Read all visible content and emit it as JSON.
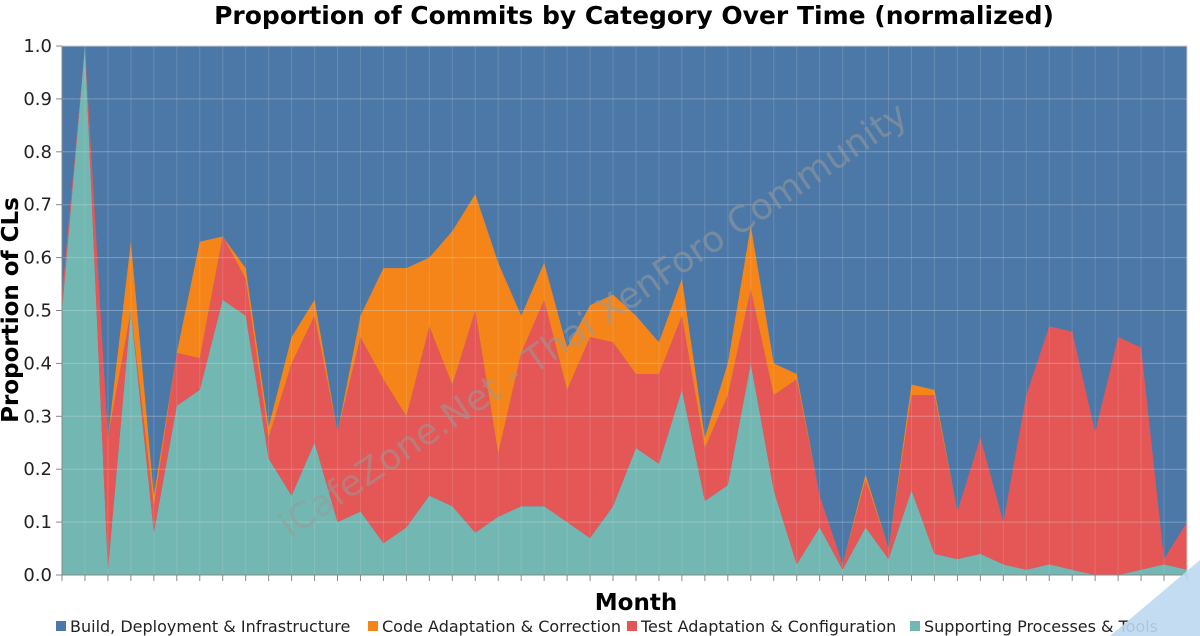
{
  "chart_data": {
    "type": "area",
    "stacked": true,
    "normalized": true,
    "title": "Proportion of Commits by Category Over Time (normalized)",
    "xlabel": "Month",
    "ylabel": "Proportion of CLs",
    "ylim": [
      0,
      1
    ],
    "yticks": [
      "0.0",
      "0.1",
      "0.2",
      "0.3",
      "0.4",
      "0.5",
      "0.6",
      "0.7",
      "0.8",
      "0.9",
      "1.0"
    ],
    "x_points": 50,
    "grid": true,
    "legend": "bottom",
    "watermark": "iCafeZone.Net - Thai XenForo Community",
    "series": [
      {
        "name": "Supporting Processes & Tools",
        "color": "#72b7b2",
        "values": [
          0.5,
          1.0,
          0.01,
          0.5,
          0.08,
          0.32,
          0.35,
          0.52,
          0.49,
          0.22,
          0.15,
          0.25,
          0.1,
          0.12,
          0.06,
          0.09,
          0.15,
          0.13,
          0.08,
          0.11,
          0.13,
          0.13,
          0.1,
          0.07,
          0.13,
          0.24,
          0.21,
          0.35,
          0.14,
          0.17,
          0.4,
          0.16,
          0.02,
          0.09,
          0.01,
          0.09,
          0.03,
          0.16,
          0.04,
          0.03,
          0.04,
          0.02,
          0.01,
          0.02,
          0.01,
          0.0,
          0.0,
          0.01,
          0.02,
          0.01
        ]
      },
      {
        "name": "Test Adaptation & Configuration",
        "color": "#e45756",
        "values": [
          0.03,
          0.0,
          0.25,
          0.0,
          0.05,
          0.1,
          0.06,
          0.12,
          0.07,
          0.04,
          0.25,
          0.24,
          0.17,
          0.33,
          0.31,
          0.21,
          0.32,
          0.23,
          0.42,
          0.12,
          0.29,
          0.39,
          0.25,
          0.38,
          0.31,
          0.14,
          0.17,
          0.14,
          0.1,
          0.17,
          0.14,
          0.18,
          0.35,
          0.06,
          0.01,
          0.09,
          0.02,
          0.18,
          0.3,
          0.09,
          0.22,
          0.08,
          0.33,
          0.45,
          0.45,
          0.27,
          0.45,
          0.42,
          0.01,
          0.09
        ]
      },
      {
        "name": "Code Adaptation & Correction",
        "color": "#f58518",
        "values": [
          0.0,
          0.0,
          0.0,
          0.13,
          0.02,
          0.0,
          0.22,
          0.0,
          0.02,
          0.02,
          0.05,
          0.03,
          0.0,
          0.04,
          0.21,
          0.28,
          0.13,
          0.29,
          0.22,
          0.36,
          0.07,
          0.07,
          0.08,
          0.06,
          0.09,
          0.11,
          0.06,
          0.07,
          0.02,
          0.06,
          0.12,
          0.06,
          0.01,
          0.0,
          0.0,
          0.01,
          0.0,
          0.02,
          0.01,
          0.0,
          0.0,
          0.0,
          0.0,
          0.0,
          0.0,
          0.0,
          0.0,
          0.0,
          0.0,
          0.0
        ]
      }
    ],
    "remainder_series": {
      "name": "Build, Deployment & Infrastructure",
      "color": "#4c78a8"
    },
    "legend_order": [
      "Build, Deployment & Infrastructure",
      "Code Adaptation & Correction",
      "Test Adaptation & Configuration",
      "Supporting Processes & Tools"
    ]
  }
}
